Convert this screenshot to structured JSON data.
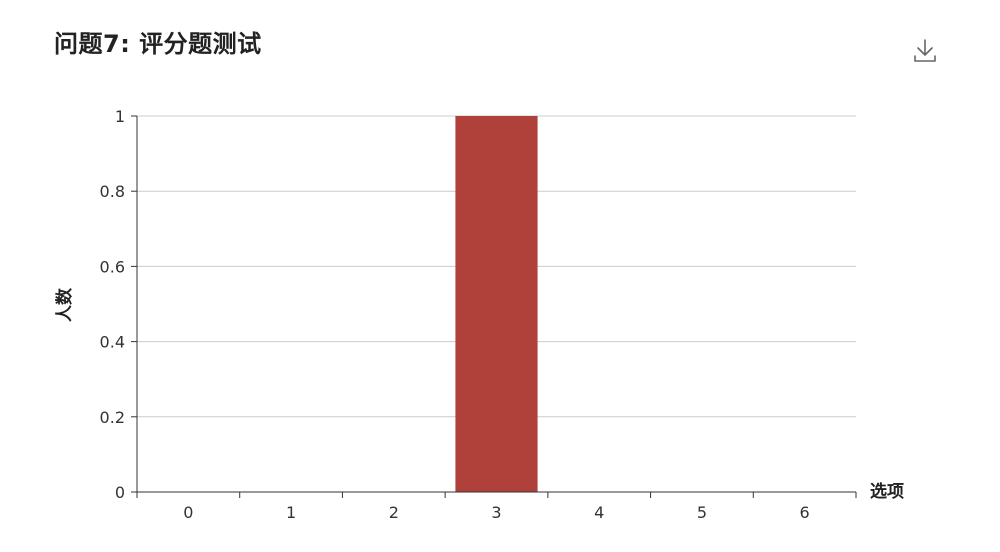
{
  "title": "问题7: 评分题测试",
  "toolbar": {
    "download_icon": "download-icon"
  },
  "colors": {
    "bar": "#b0413a",
    "grid": "#cccccc",
    "axis": "#333333"
  },
  "chart_data": {
    "type": "bar",
    "categories": [
      "0",
      "1",
      "2",
      "3",
      "4",
      "5",
      "6"
    ],
    "values": [
      0,
      0,
      0,
      1,
      0,
      0,
      0
    ],
    "xlabel": "选项",
    "ylabel": "人数",
    "ylim": [
      0,
      1
    ],
    "yticks": [
      "0",
      "0.2",
      "0.4",
      "0.6",
      "0.8",
      "1"
    ],
    "grid": true
  }
}
